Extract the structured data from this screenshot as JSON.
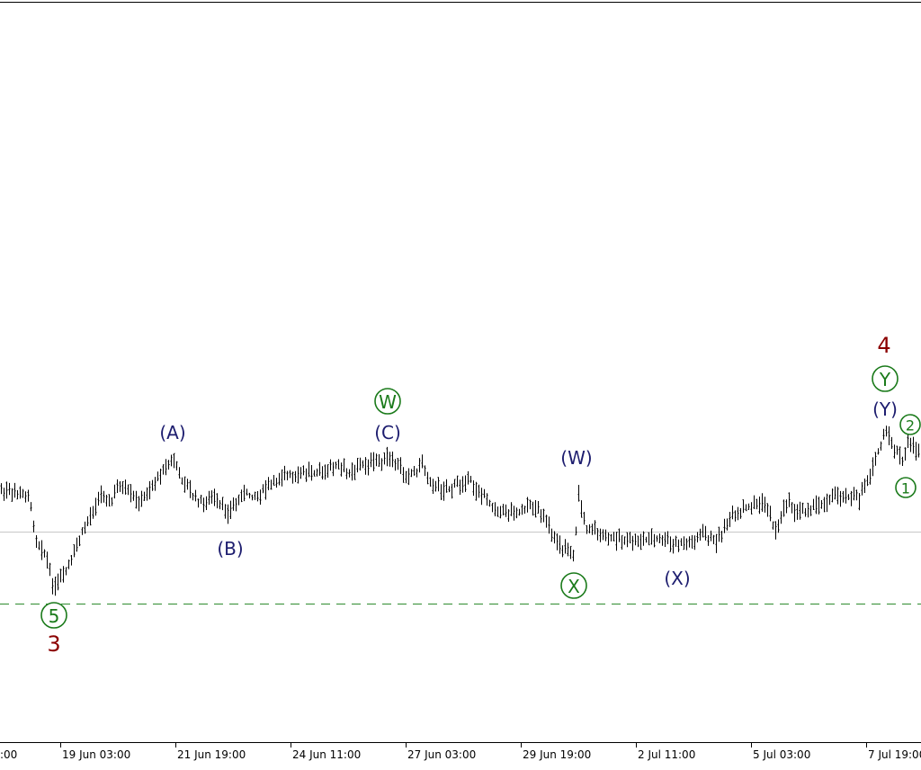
{
  "chart_data": {
    "type": "ohlc",
    "title": "",
    "xlabel": "",
    "ylabel": "",
    "x_tick_labels": [
      ":00",
      "19 Jun 03:00",
      "21 Jun 19:00",
      "24 Jun 11:00",
      "27 Jun 03:00",
      "29 Jun 19:00",
      "2 Jul 11:00",
      "5 Jul 03:00",
      "7 Jul 19:00"
    ],
    "grid": false,
    "legend": "none",
    "price_path": [
      [
        0,
        545
      ],
      [
        12,
        548
      ],
      [
        32,
        552
      ],
      [
        40,
        600
      ],
      [
        50,
        615
      ],
      [
        60,
        655
      ],
      [
        70,
        640
      ],
      [
        80,
        620
      ],
      [
        92,
        590
      ],
      [
        100,
        575
      ],
      [
        110,
        548
      ],
      [
        122,
        560
      ],
      [
        132,
        540
      ],
      [
        145,
        550
      ],
      [
        155,
        560
      ],
      [
        170,
        540
      ],
      [
        181,
        520
      ],
      [
        192,
        510
      ],
      [
        200,
        530
      ],
      [
        212,
        548
      ],
      [
        225,
        560
      ],
      [
        238,
        555
      ],
      [
        255,
        570
      ],
      [
        268,
        550
      ],
      [
        285,
        550
      ],
      [
        300,
        540
      ],
      [
        315,
        528
      ],
      [
        330,
        530
      ],
      [
        345,
        522
      ],
      [
        360,
        525
      ],
      [
        372,
        518
      ],
      [
        385,
        525
      ],
      [
        400,
        518
      ],
      [
        415,
        515
      ],
      [
        428,
        508
      ],
      [
        440,
        518
      ],
      [
        455,
        528
      ],
      [
        470,
        515
      ],
      [
        480,
        540
      ],
      [
        495,
        545
      ],
      [
        510,
        538
      ],
      [
        520,
        530
      ],
      [
        530,
        545
      ],
      [
        545,
        560
      ],
      [
        560,
        568
      ],
      [
        575,
        570
      ],
      [
        590,
        562
      ],
      [
        605,
        572
      ],
      [
        615,
        600
      ],
      [
        628,
        610
      ],
      [
        638,
        620
      ],
      [
        643,
        548
      ],
      [
        650,
        585
      ],
      [
        660,
        590
      ],
      [
        675,
        598
      ],
      [
        690,
        598
      ],
      [
        705,
        602
      ],
      [
        720,
        600
      ],
      [
        735,
        600
      ],
      [
        750,
        605
      ],
      [
        765,
        605
      ],
      [
        780,
        595
      ],
      [
        795,
        602
      ],
      [
        810,
        580
      ],
      [
        825,
        568
      ],
      [
        840,
        560
      ],
      [
        850,
        560
      ],
      [
        862,
        590
      ],
      [
        875,
        555
      ],
      [
        885,
        570
      ],
      [
        898,
        565
      ],
      [
        912,
        560
      ],
      [
        928,
        552
      ],
      [
        940,
        550
      ],
      [
        955,
        555
      ],
      [
        965,
        530
      ],
      [
        975,
        505
      ],
      [
        985,
        480
      ],
      [
        993,
        495
      ],
      [
        1003,
        515
      ],
      [
        1010,
        490
      ],
      [
        1018,
        500
      ],
      [
        1024,
        495
      ]
    ],
    "reference_lines": [
      {
        "style": "solid",
        "color": "#c8c8c8"
      },
      {
        "style": "dashed",
        "color": "#2e8b2e"
      }
    ],
    "wave_labels": [
      {
        "text": "3",
        "style": "plain",
        "color": "#8b0000"
      },
      {
        "text": "5",
        "style": "circled",
        "color": "#1a7a1a"
      },
      {
        "text": "(A)",
        "style": "plain",
        "color": "#1c1c6e"
      },
      {
        "text": "(B)",
        "style": "plain",
        "color": "#1c1c6e"
      },
      {
        "text": "(C)",
        "style": "plain",
        "color": "#1c1c6e"
      },
      {
        "text": "W",
        "style": "circled",
        "color": "#1a7a1a"
      },
      {
        "text": "(W)",
        "style": "plain",
        "color": "#1c1c6e"
      },
      {
        "text": "X",
        "style": "circled",
        "color": "#1a7a1a"
      },
      {
        "text": "(X)",
        "style": "plain",
        "color": "#1c1c6e"
      },
      {
        "text": "(Y)",
        "style": "plain",
        "color": "#1c1c6e"
      },
      {
        "text": "Y",
        "style": "circled",
        "color": "#1a7a1a"
      },
      {
        "text": "4",
        "style": "plain",
        "color": "#8b0000"
      },
      {
        "text": "2",
        "style": "circled",
        "color": "#1a7a1a"
      },
      {
        "text": "1",
        "style": "circled",
        "color": "#1a7a1a"
      }
    ]
  }
}
